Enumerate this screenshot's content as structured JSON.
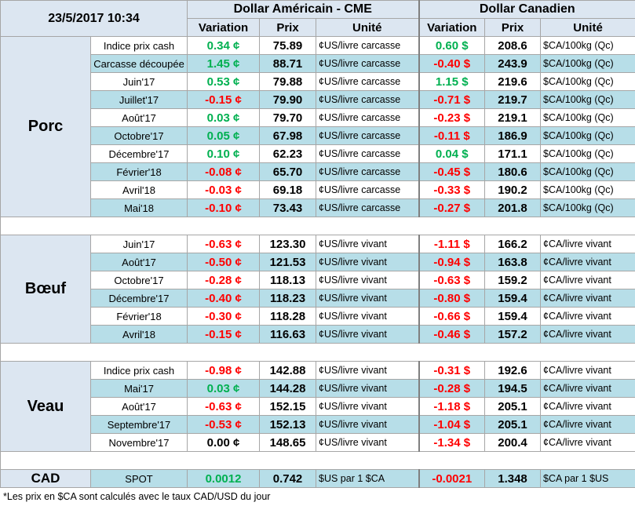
{
  "header": {
    "timestamp": "23/5/2017 10:34",
    "usd_title": "Dollar Américain - CME",
    "cad_title": "Dollar Canadien",
    "columns": [
      "Variation",
      "Prix",
      "Unité",
      "Variation",
      "Prix",
      "Unité"
    ]
  },
  "groups": [
    {
      "name": "Porc",
      "rows": [
        [
          "Indice prix cash",
          "0.34 ¢",
          "75.89",
          "¢US/livre carcasse",
          "0.60 $",
          "208.6",
          "$CA/100kg (Qc)"
        ],
        [
          "Carcasse découpée",
          "1.45 ¢",
          "88.71",
          "¢US/livre carcasse",
          "-0.40 $",
          "243.9",
          "$CA/100kg (Qc)"
        ],
        [
          "Juin'17",
          "0.53 ¢",
          "79.88",
          "¢US/livre carcasse",
          "1.15 $",
          "219.6",
          "$CA/100kg (Qc)"
        ],
        [
          "Juillet'17",
          "-0.15 ¢",
          "79.90",
          "¢US/livre carcasse",
          "-0.71 $",
          "219.7",
          "$CA/100kg (Qc)"
        ],
        [
          "Août'17",
          "0.03 ¢",
          "79.70",
          "¢US/livre carcasse",
          "-0.23 $",
          "219.1",
          "$CA/100kg (Qc)"
        ],
        [
          "Octobre'17",
          "0.05 ¢",
          "67.98",
          "¢US/livre carcasse",
          "-0.11 $",
          "186.9",
          "$CA/100kg (Qc)"
        ],
        [
          "Décembre'17",
          "0.10 ¢",
          "62.23",
          "¢US/livre carcasse",
          "0.04 $",
          "171.1",
          "$CA/100kg (Qc)"
        ],
        [
          "Février'18",
          "-0.08 ¢",
          "65.70",
          "¢US/livre carcasse",
          "-0.45 $",
          "180.6",
          "$CA/100kg (Qc)"
        ],
        [
          "Avril'18",
          "-0.03 ¢",
          "69.18",
          "¢US/livre carcasse",
          "-0.33 $",
          "190.2",
          "$CA/100kg (Qc)"
        ],
        [
          "Mai'18",
          "-0.10 ¢",
          "73.43",
          "¢US/livre carcasse",
          "-0.27 $",
          "201.8",
          "$CA/100kg (Qc)"
        ]
      ]
    },
    {
      "name": "Bœuf",
      "rows": [
        [
          "Juin'17",
          "-0.63 ¢",
          "123.30",
          "¢US/livre vivant",
          "-1.11 $",
          "166.2",
          "¢CA/livre vivant"
        ],
        [
          "Août'17",
          "-0.50 ¢",
          "121.53",
          "¢US/livre vivant",
          "-0.94 $",
          "163.8",
          "¢CA/livre vivant"
        ],
        [
          "Octobre'17",
          "-0.28 ¢",
          "118.13",
          "¢US/livre vivant",
          "-0.63 $",
          "159.2",
          "¢CA/livre vivant"
        ],
        [
          "Décembre'17",
          "-0.40 ¢",
          "118.23",
          "¢US/livre vivant",
          "-0.80 $",
          "159.4",
          "¢CA/livre vivant"
        ],
        [
          "Février'18",
          "-0.30 ¢",
          "118.28",
          "¢US/livre vivant",
          "-0.66 $",
          "159.4",
          "¢CA/livre vivant"
        ],
        [
          "Avril'18",
          "-0.15 ¢",
          "116.63",
          "¢US/livre vivant",
          "-0.46 $",
          "157.2",
          "¢CA/livre vivant"
        ]
      ]
    },
    {
      "name": "Veau",
      "rows": [
        [
          "Indice prix cash",
          "-0.98 ¢",
          "142.88",
          "¢US/livre vivant",
          "-0.31 $",
          "192.6",
          "¢CA/livre vivant"
        ],
        [
          "Mai'17",
          "0.03 ¢",
          "144.28",
          "¢US/livre vivant",
          "-0.28 $",
          "194.5",
          "¢CA/livre vivant"
        ],
        [
          "Août'17",
          "-0.63 ¢",
          "152.15",
          "¢US/livre vivant",
          "-1.18 $",
          "205.1",
          "¢CA/livre vivant"
        ],
        [
          "Septembre'17",
          "-0.53 ¢",
          "152.13",
          "¢US/livre vivant",
          "-1.04 $",
          "205.1",
          "¢CA/livre vivant"
        ],
        [
          "Novembre'17",
          "0.00 ¢",
          "148.65",
          "¢US/livre vivant",
          "-1.34 $",
          "200.4",
          "¢CA/livre vivant"
        ]
      ]
    }
  ],
  "cad": {
    "name": "CAD",
    "row": [
      "SPOT",
      "0.0012",
      "0.742",
      "$US par 1 $CA",
      "-0.0021",
      "1.348",
      "$CA par 1 $US"
    ]
  },
  "footnote": "*Les  prix en $CA sont calculés avec le taux CAD/USD du jour"
}
